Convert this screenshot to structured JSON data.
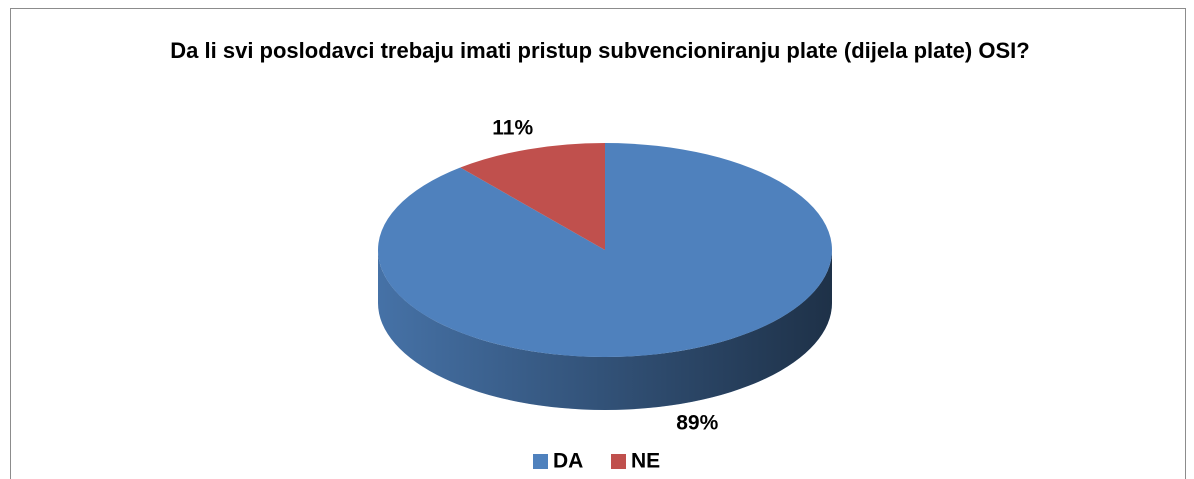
{
  "chart_data": {
    "type": "pie",
    "title": "Da li svi poslodavci trebaju imati pristup subvencioniranju plate (dijela plate) OSI?",
    "categories": [
      "DA",
      "NE"
    ],
    "values": [
      89,
      11
    ],
    "value_labels": [
      "89%",
      "11%"
    ],
    "colors": [
      "#4f81bd",
      "#c0504d"
    ],
    "legend": "bottom"
  }
}
